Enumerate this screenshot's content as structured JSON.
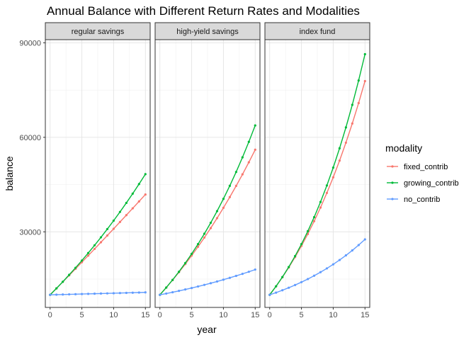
{
  "chart_data": {
    "type": "line",
    "title": "Annual Balance with Different Return Rates and Modalities",
    "xlabel": "year",
    "ylabel": "balance",
    "x": [
      0,
      1,
      2,
      3,
      4,
      5,
      6,
      7,
      8,
      9,
      10,
      11,
      12,
      13,
      14,
      15
    ],
    "xlim": [
      -0.75,
      15.75
    ],
    "ylim": [
      6000,
      91000
    ],
    "x_ticks": [
      0,
      5,
      10,
      15
    ],
    "y_ticks": [
      30000,
      60000,
      90000
    ],
    "grid": true,
    "legend": {
      "title": "modality",
      "placement": "right",
      "entries": [
        "fixed_contrib",
        "growing_contrib",
        "no_contrib"
      ]
    },
    "colors": {
      "fixed_contrib": "#F8766D",
      "growing_contrib": "#00BA38",
      "no_contrib": "#619CFF"
    },
    "facets": [
      {
        "label": "regular savings",
        "series": [
          {
            "name": "fixed_contrib",
            "values": [
              10000,
              12050,
              14111,
              16181,
              18262,
              20353,
              22455,
              24567,
              26690,
              28823,
              30967,
              33122,
              35288,
              37464,
              39652,
              41850
            ]
          },
          {
            "name": "growing_contrib",
            "values": [
              10000,
              12050,
              14161,
              16337,
              18579,
              20889,
              23270,
              25723,
              28252,
              30859,
              33547,
              36319,
              39177,
              42126,
              45167,
              48305
            ]
          },
          {
            "name": "no_contrib",
            "values": [
              10000,
              10050,
              10100,
              10151,
              10202,
              10253,
              10304,
              10355,
              10407,
              10459,
              10511,
              10564,
              10617,
              10670,
              10723,
              10777
            ]
          }
        ]
      },
      {
        "label": "high-yield savings",
        "series": [
          {
            "name": "fixed_contrib",
            "values": [
              10000,
              12300,
              14692,
              17180,
              19767,
              22458,
              25256,
              28166,
              31193,
              34341,
              37614,
              41019,
              44560,
              48242,
              52072,
              56055
            ]
          },
          {
            "name": "growing_contrib",
            "values": [
              10000,
              12300,
              14742,
              17335,
              20087,
              23006,
              26102,
              29385,
              32865,
              36554,
              40463,
              44605,
              48993,
              53641,
              58563,
              63776
            ]
          },
          {
            "name": "no_contrib",
            "values": [
              10000,
              10400,
              10816,
              11249,
              11699,
              12167,
              12653,
              13159,
              13686,
              14233,
              14802,
              15395,
              16010,
              16651,
              17317,
              18009
            ]
          }
        ]
      },
      {
        "label": "index fund",
        "series": [
          {
            "name": "fixed_contrib",
            "values": [
              10000,
              12700,
              15589,
              18680,
              21988,
              25527,
              29314,
              33366,
              37702,
              42341,
              47305,
              52616,
              58299,
              64380,
              70887,
              77849
            ]
          },
          {
            "name": "growing_contrib",
            "values": [
              10000,
              12700,
              15639,
              18836,
              22313,
              26093,
              30197,
              34651,
              39481,
              44716,
              50383,
              56515,
              63145,
              70309,
              78045,
              86395
            ]
          },
          {
            "name": "no_contrib",
            "values": [
              10000,
              10700,
              11449,
              12250,
              13108,
              14026,
              15007,
              16058,
              17182,
              18385,
              19672,
              21049,
              22522,
              24098,
              25785,
              27590
            ]
          }
        ]
      }
    ]
  }
}
